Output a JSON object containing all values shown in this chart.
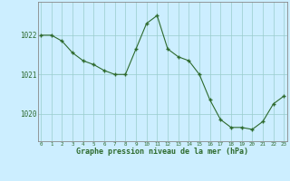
{
  "x": [
    0,
    1,
    2,
    3,
    4,
    5,
    6,
    7,
    8,
    9,
    10,
    11,
    12,
    13,
    14,
    15,
    16,
    17,
    18,
    19,
    20,
    21,
    22,
    23
  ],
  "y": [
    1022.0,
    1022.0,
    1021.85,
    1021.55,
    1021.35,
    1021.25,
    1021.1,
    1021.0,
    1021.0,
    1021.65,
    1022.3,
    1022.5,
    1021.65,
    1021.45,
    1021.35,
    1021.0,
    1020.35,
    1019.85,
    1019.65,
    1019.65,
    1019.6,
    1019.8,
    1020.25,
    1020.45
  ],
  "line_color": "#2d6a2d",
  "marker_color": "#2d6a2d",
  "bg_color": "#cceeff",
  "grid_color": "#99cccc",
  "axis_line_color": "#888888",
  "label_color": "#2d6a2d",
  "xlabel": "Graphe pression niveau de la mer (hPa)",
  "ylim": [
    1019.3,
    1022.85
  ],
  "yticks": [
    1020,
    1021,
    1022
  ],
  "xticks": [
    0,
    1,
    2,
    3,
    4,
    5,
    6,
    7,
    8,
    9,
    10,
    11,
    12,
    13,
    14,
    15,
    16,
    17,
    18,
    19,
    20,
    21,
    22,
    23
  ],
  "figsize": [
    3.2,
    2.0
  ],
  "dpi": 100
}
